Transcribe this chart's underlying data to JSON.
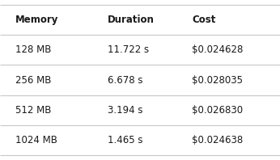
{
  "columns": [
    "Memory",
    "Duration",
    "Cost"
  ],
  "rows": [
    [
      "128 MB",
      "11.722 s",
      "$0.024628"
    ],
    [
      "256 MB",
      "6.678 s",
      "$0.028035"
    ],
    [
      "512 MB",
      "3.194 s",
      "$0.026830"
    ],
    [
      "1024 MB",
      "1.465 s",
      "$0.024638"
    ]
  ],
  "header_font_size": 8.5,
  "cell_font_size": 8.5,
  "background_color": "#ffffff",
  "header_text_color": "#1a1a1a",
  "cell_text_color": "#1a1a1a",
  "line_color": "#c8c8c8",
  "x_positions": [
    0.055,
    0.385,
    0.685
  ],
  "fig_width": 3.46,
  "fig_height": 1.98,
  "dpi": 100
}
